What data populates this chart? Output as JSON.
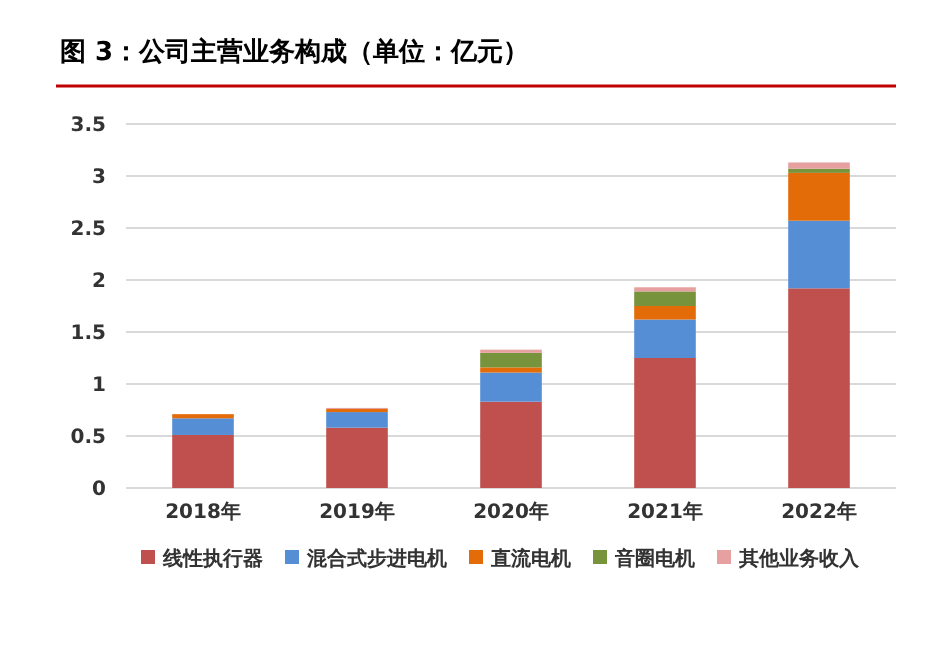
{
  "chart_data": {
    "type": "bar",
    "title": "图 3：公司主营业务构成（单位：亿元）",
    "categories": [
      "2018年",
      "2019年",
      "2020年",
      "2021年",
      "2022年"
    ],
    "stacked": true,
    "series": [
      {
        "name": "线性执行器",
        "color": "#c0504d",
        "values": [
          0.51,
          0.58,
          0.83,
          1.25,
          1.92
        ]
      },
      {
        "name": "混合式步进电机",
        "color": "#558ed5",
        "values": [
          0.16,
          0.15,
          0.28,
          0.37,
          0.65
        ]
      },
      {
        "name": "直流电机",
        "color": "#e36c09",
        "values": [
          0.04,
          0.03,
          0.05,
          0.13,
          0.46
        ]
      },
      {
        "name": "音圈电机",
        "color": "#77933c",
        "values": [
          0,
          0,
          0.14,
          0.14,
          0.04
        ]
      },
      {
        "name": "其他业务收入",
        "color": "#e6a0a0",
        "values": [
          0,
          0.01,
          0.03,
          0.04,
          0.06
        ]
      }
    ],
    "ylim": [
      0,
      3.5
    ],
    "yticks": [
      0,
      0.5,
      1,
      1.5,
      2,
      2.5,
      3,
      3.5
    ],
    "grid": "y",
    "legend": "bottom"
  }
}
